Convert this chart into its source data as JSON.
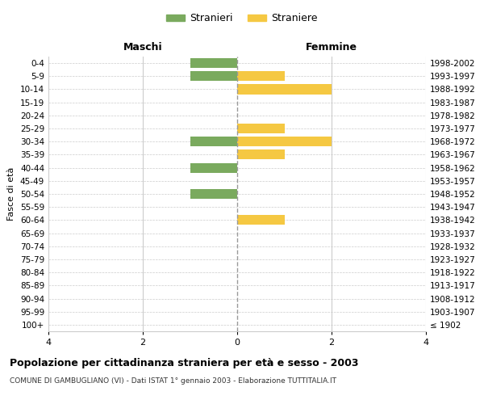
{
  "age_groups": [
    "100+",
    "95-99",
    "90-94",
    "85-89",
    "80-84",
    "75-79",
    "70-74",
    "65-69",
    "60-64",
    "55-59",
    "50-54",
    "45-49",
    "40-44",
    "35-39",
    "30-34",
    "25-29",
    "20-24",
    "15-19",
    "10-14",
    "5-9",
    "0-4"
  ],
  "birth_years": [
    "≤ 1902",
    "1903-1907",
    "1908-1912",
    "1913-1917",
    "1918-1922",
    "1923-1927",
    "1928-1932",
    "1933-1937",
    "1938-1942",
    "1943-1947",
    "1948-1952",
    "1953-1957",
    "1958-1962",
    "1963-1967",
    "1968-1972",
    "1973-1977",
    "1978-1982",
    "1983-1987",
    "1988-1992",
    "1993-1997",
    "1998-2002"
  ],
  "males": [
    0,
    0,
    0,
    0,
    0,
    0,
    0,
    0,
    0,
    0,
    -1,
    0,
    -1,
    0,
    -1,
    0,
    0,
    0,
    0,
    -1,
    -1
  ],
  "females": [
    0,
    0,
    0,
    0,
    0,
    0,
    0,
    0,
    1,
    0,
    0,
    0,
    0,
    1,
    2,
    1,
    0,
    0,
    2,
    1,
    0
  ],
  "male_color": "#7aaa5e",
  "female_color": "#f5c842",
  "title": "Popolazione per cittadinanza straniera per età e sesso - 2003",
  "subtitle": "COMUNE DI GAMBUGLIANO (VI) - Dati ISTAT 1° gennaio 2003 - Elaborazione TUTTITALIA.IT",
  "xlabel_left": "Maschi",
  "xlabel_right": "Femmine",
  "ylabel_left": "Fasce di età",
  "legend_male": "Stranieri",
  "legend_female": "Straniere",
  "xlim": [
    -4,
    4
  ],
  "xticks": [
    -4,
    -2,
    0,
    2,
    4
  ],
  "xticklabels": [
    "4",
    "2",
    "0",
    "2",
    "4"
  ],
  "background_color": "#ffffff",
  "grid_color": "#cccccc"
}
